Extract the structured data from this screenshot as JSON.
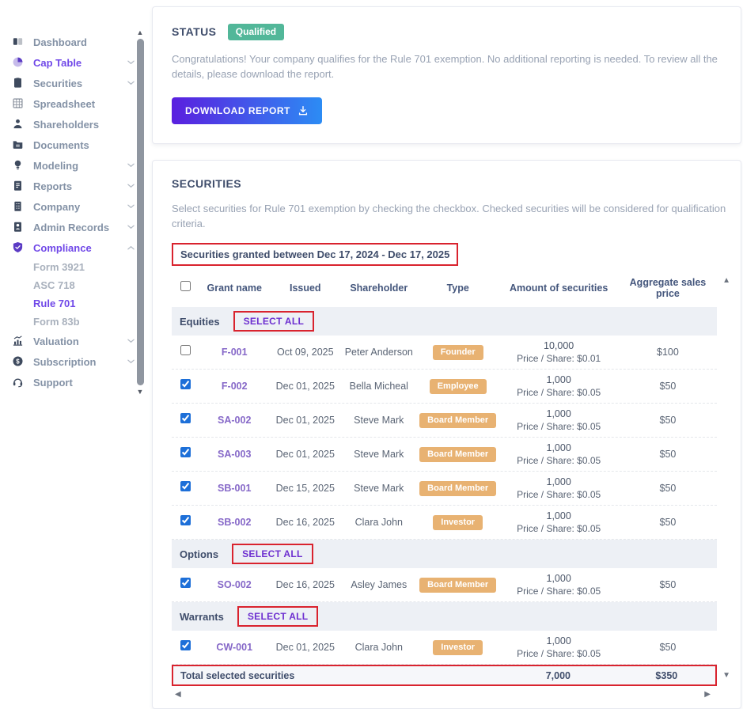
{
  "sidebar": {
    "items": [
      {
        "label": "Dashboard",
        "icon": "dashboard-icon",
        "active": false,
        "chevron": null
      },
      {
        "label": "Cap Table",
        "icon": "pie-chart-icon",
        "active": true,
        "chevron": "down"
      },
      {
        "label": "Securities",
        "icon": "certificate-icon",
        "active": false,
        "chevron": "down"
      },
      {
        "label": "Spreadsheet",
        "icon": "spreadsheet-grid-icon",
        "active": false,
        "chevron": null
      },
      {
        "label": "Shareholders",
        "icon": "person-icon",
        "active": false,
        "chevron": null
      },
      {
        "label": "Documents",
        "icon": "folder-icon",
        "active": false,
        "chevron": null
      },
      {
        "label": "Modeling",
        "icon": "lightbulb-icon",
        "active": false,
        "chevron": "down"
      },
      {
        "label": "Reports",
        "icon": "report-icon",
        "active": false,
        "chevron": "down"
      },
      {
        "label": "Company",
        "icon": "building-icon",
        "active": false,
        "chevron": "down"
      },
      {
        "label": "Admin Records",
        "icon": "records-icon",
        "active": false,
        "chevron": "down"
      },
      {
        "label": "Compliance",
        "icon": "shield-check-icon",
        "active": true,
        "chevron": "up",
        "children": [
          {
            "label": "Form 3921",
            "active": false
          },
          {
            "label": "ASC 718",
            "active": false
          },
          {
            "label": "Rule 701",
            "active": true
          },
          {
            "label": "Form 83b",
            "active": false
          }
        ]
      },
      {
        "label": "Valuation",
        "icon": "chart-growth-icon",
        "active": false,
        "chevron": "down"
      },
      {
        "label": "Subscription",
        "icon": "dollar-circle-icon",
        "active": false,
        "chevron": "down"
      },
      {
        "label": "Support",
        "icon": "headset-icon",
        "active": false,
        "chevron": null
      }
    ]
  },
  "status_card": {
    "title": "STATUS",
    "badge": "Qualified",
    "message": "Congratulations! Your company qualifies for the Rule 701 exemption. No additional reporting is needed. To review all the details, please download the report.",
    "download_button": "DOWNLOAD REPORT"
  },
  "securities_card": {
    "title": "SECURITIES",
    "description": "Select securities for Rule 701 exemption by checking the checkbox. Checked securities will be considered for qualification criteria.",
    "date_range": "Securities granted between Dec 17, 2024 - Dec 17, 2025",
    "header_checkbox_checked": false,
    "columns": [
      "Grant name",
      "Issued",
      "Shareholder",
      "Type",
      "Amount of securities",
      "Aggregate sales price"
    ],
    "select_all_label": "SELECT ALL",
    "groups": [
      {
        "name": "Equities",
        "rows": [
          {
            "checked": false,
            "grant": "F-001",
            "issued": "Oct 09, 2025",
            "shareholder": "Peter Anderson",
            "type": "Founder",
            "amount": "10,000",
            "price_share": "Price / Share: $0.01",
            "aggregate": "$100"
          },
          {
            "checked": true,
            "grant": "F-002",
            "issued": "Dec 01, 2025",
            "shareholder": "Bella Micheal",
            "type": "Employee",
            "amount": "1,000",
            "price_share": "Price / Share: $0.05",
            "aggregate": "$50"
          },
          {
            "checked": true,
            "grant": "SA-002",
            "issued": "Dec 01, 2025",
            "shareholder": "Steve Mark",
            "type": "Board Member",
            "amount": "1,000",
            "price_share": "Price / Share: $0.05",
            "aggregate": "$50"
          },
          {
            "checked": true,
            "grant": "SA-003",
            "issued": "Dec 01, 2025",
            "shareholder": "Steve Mark",
            "type": "Board Member",
            "amount": "1,000",
            "price_share": "Price / Share: $0.05",
            "aggregate": "$50"
          },
          {
            "checked": true,
            "grant": "SB-001",
            "issued": "Dec 15, 2025",
            "shareholder": "Steve Mark",
            "type": "Board Member",
            "amount": "1,000",
            "price_share": "Price / Share: $0.05",
            "aggregate": "$50"
          },
          {
            "checked": true,
            "grant": "SB-002",
            "issued": "Dec 16, 2025",
            "shareholder": "Clara John",
            "type": "Investor",
            "amount": "1,000",
            "price_share": "Price / Share: $0.05",
            "aggregate": "$50"
          }
        ]
      },
      {
        "name": "Options",
        "rows": [
          {
            "checked": true,
            "grant": "SO-002",
            "issued": "Dec 16, 2025",
            "shareholder": "Asley James",
            "type": "Board Member",
            "amount": "1,000",
            "price_share": "Price / Share: $0.05",
            "aggregate": "$50"
          }
        ]
      },
      {
        "name": "Warrants",
        "rows": [
          {
            "checked": true,
            "grant": "CW-001",
            "issued": "Dec 01, 2025",
            "shareholder": "Clara John",
            "type": "Investor",
            "amount": "1,000",
            "price_share": "Price / Share: $0.05",
            "aggregate": "$50"
          }
        ]
      }
    ],
    "total": {
      "label": "Total selected securities",
      "amount": "7,000",
      "aggregate": "$350"
    }
  },
  "colors": {
    "accent_purple": "#7048e8",
    "link_purple": "#8668c8",
    "badge_green": "#52b799",
    "badge_tan": "#e8b272",
    "annotation_red": "#d9232e",
    "checkbox_blue": "#1d6fd8",
    "button_gradient_start": "#5a1fdf",
    "button_gradient_end": "#2c8cf4",
    "header_navy": "#44567c"
  }
}
